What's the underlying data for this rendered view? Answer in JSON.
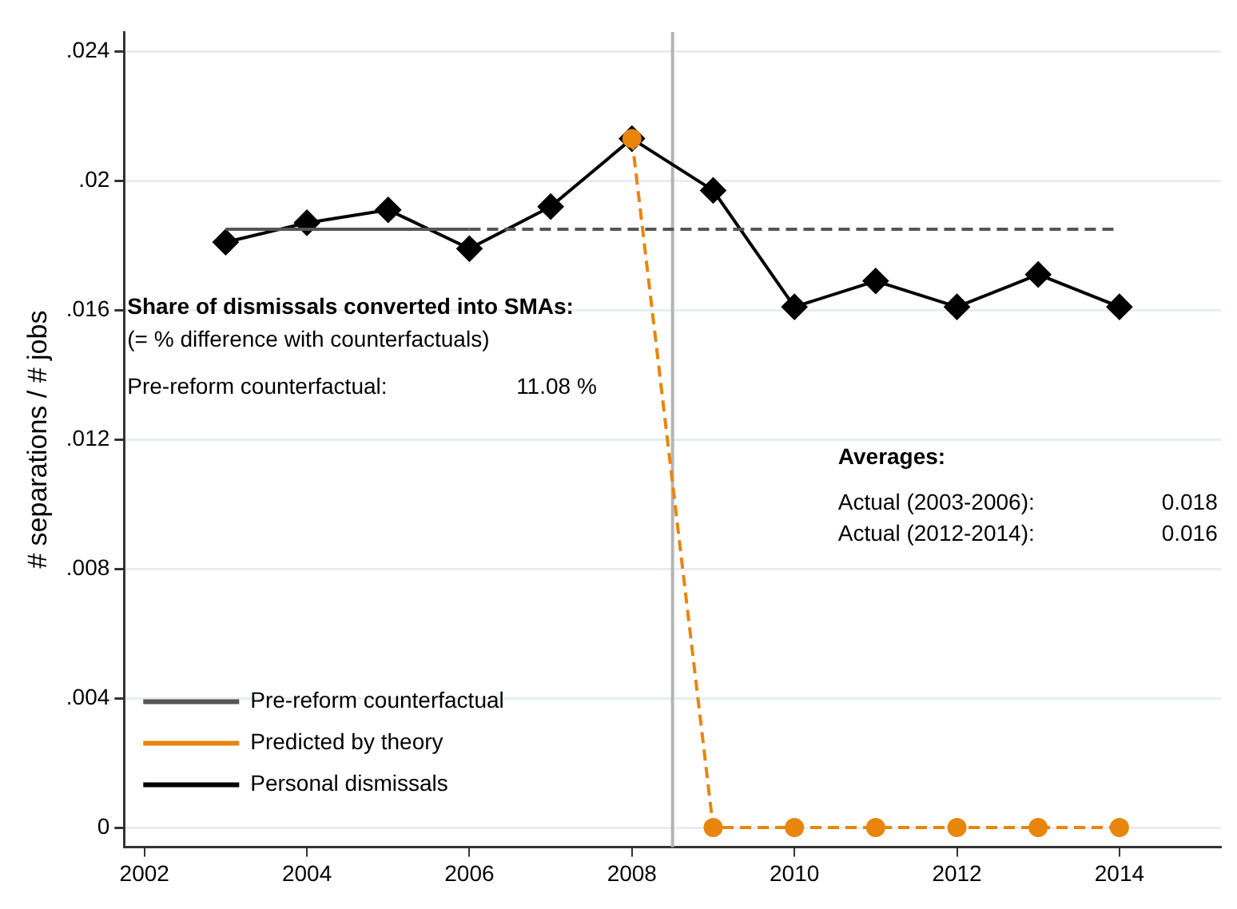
{
  "chart_data": {
    "type": "line",
    "ylabel": "# separations / # jobs",
    "xlim": [
      2001.75,
      2015.25
    ],
    "xticks": [
      2002,
      2004,
      2006,
      2008,
      2010,
      2012,
      2014
    ],
    "ylim": [
      -0.0006,
      0.0246
    ],
    "yticks": [
      {
        "value": 0,
        "label": "0"
      },
      {
        "value": 0.004,
        "label": ".004"
      },
      {
        "value": 0.008,
        "label": ".008"
      },
      {
        "value": 0.012,
        "label": ".012"
      },
      {
        "value": 0.016,
        "label": ".016"
      },
      {
        "value": 0.02,
        "label": ".02"
      },
      {
        "value": 0.024,
        "label": ".024"
      }
    ],
    "grid": "y",
    "legend": "bottom left",
    "series": [
      {
        "type": "line",
        "color": "#555555",
        "line_style": "solid",
        "marker": "none",
        "x": [
          2003,
          2006
        ],
        "values": [
          0.0185,
          0.0185
        ]
      },
      {
        "type": "line",
        "name": "Pre-reform counterfactual",
        "color": "#555555",
        "line_style": "dashed",
        "marker": "none",
        "x": [
          2006,
          2014
        ],
        "values": [
          0.0185,
          0.0185
        ]
      },
      {
        "type": "line",
        "name": "Predicted by theory",
        "color": "#e8850c",
        "line_style": "dashed",
        "marker": "circle",
        "x": [
          2008,
          2009,
          2010,
          2011,
          2012,
          2013,
          2014
        ],
        "values": [
          0.0213,
          0,
          0,
          0,
          0,
          0,
          0
        ]
      },
      {
        "type": "line",
        "name": "Personal dismissals",
        "color": "#000000",
        "line_style": "solid",
        "marker": "diamond",
        "x": [
          2003,
          2004,
          2005,
          2006,
          2007,
          2008,
          2009,
          2010,
          2011,
          2012,
          2013,
          2014
        ],
        "values": [
          0.0181,
          0.0187,
          0.0191,
          0.0179,
          0.0192,
          0.0213,
          0.0197,
          0.0161,
          0.0169,
          0.0161,
          0.0171,
          0.0161
        ]
      }
    ],
    "ref_lines": [
      {
        "axis": "x",
        "value": 2008.5,
        "color": "#b4b4b4"
      }
    ],
    "annotations": [
      "Share of dismissals converted into SMAs:",
      "(= % difference with counterfactuals)",
      "Pre-reform counterfactual:",
      "11.08 %",
      "Averages:",
      "Actual (2003-2006):",
      "0.018",
      "Actual (2012-2014):",
      "0.016"
    ]
  }
}
